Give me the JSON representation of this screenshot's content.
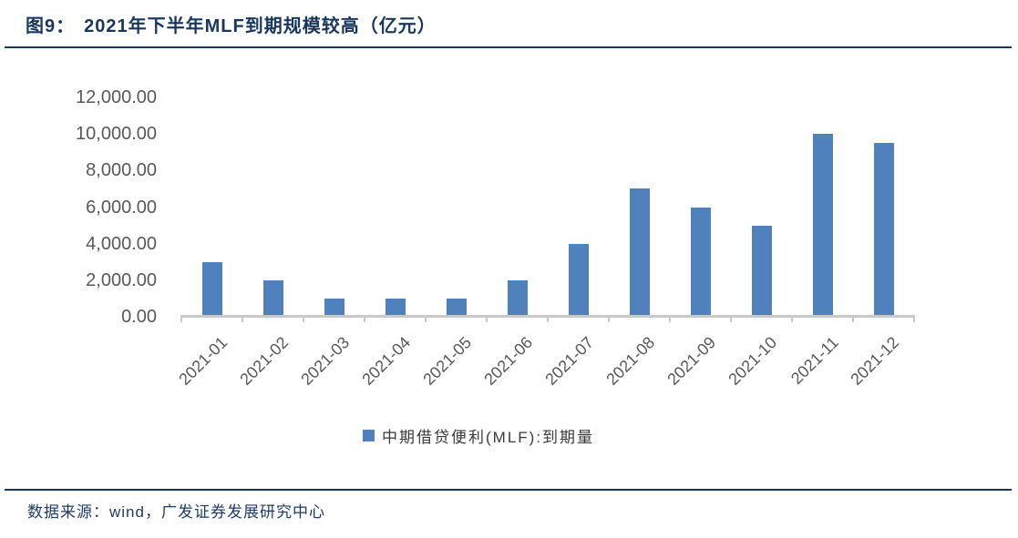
{
  "header": {
    "figure_label": "图9：",
    "title": "2021年下半年MLF到期规模较高（亿元）"
  },
  "chart_data": {
    "type": "bar",
    "title": "图9：2021年下半年MLF到期规模较高（亿元）",
    "categories": [
      "2021-01",
      "2021-02",
      "2021-03",
      "2021-04",
      "2021-05",
      "2021-06",
      "2021-07",
      "2021-08",
      "2021-09",
      "2021-10",
      "2021-11",
      "2021-12"
    ],
    "series": [
      {
        "name": "中期借贷便利(MLF):到期量",
        "values": [
          3000,
          2000,
          1000,
          1000,
          1000,
          2000,
          4000,
          7000,
          6000,
          5000,
          10000,
          9500
        ]
      }
    ],
    "xlabel": "",
    "ylabel": "",
    "ylim": [
      0,
      12000
    ],
    "y_ticks": [
      {
        "value": 0,
        "label": "0.00"
      },
      {
        "value": 2000,
        "label": "2,000.00"
      },
      {
        "value": 4000,
        "label": "4,000.00"
      },
      {
        "value": 6000,
        "label": "6,000.00"
      },
      {
        "value": 8000,
        "label": "8,000.00"
      },
      {
        "value": 10000,
        "label": "10,000.00"
      },
      {
        "value": 12000,
        "label": "12,000.00"
      }
    ],
    "grid": false,
    "legend_position": "bottom",
    "bar_color": "#4F81BD"
  },
  "legend": {
    "label": "中期借贷便利(MLF):到期量"
  },
  "footer": {
    "source": "数据来源：wind，广发证券发展研究中心"
  },
  "colors": {
    "bar": "#4F81BD",
    "title": "#17375E",
    "rule": "#17375E",
    "axis_label": "#595959",
    "axis_line": "#C9C9C9",
    "footer_text": "#1F3B66"
  }
}
